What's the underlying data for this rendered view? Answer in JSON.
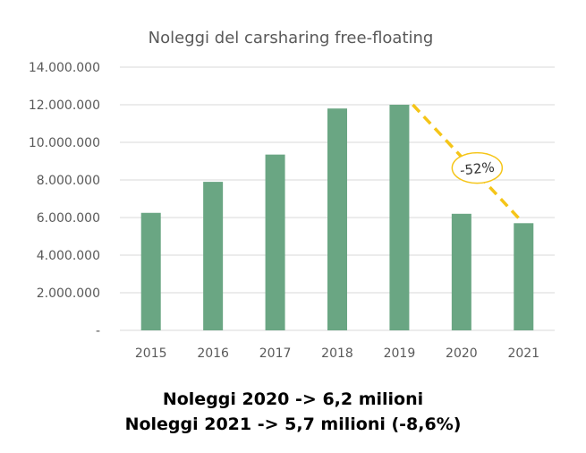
{
  "chart_data": {
    "type": "bar",
    "title": "Noleggi del carsharing free-floating",
    "xlabel": "",
    "ylabel": "",
    "categories": [
      "2015",
      "2016",
      "2017",
      "2018",
      "2019",
      "2020",
      "2021"
    ],
    "values": [
      6250000,
      7900000,
      9350000,
      11800000,
      12000000,
      6200000,
      5700000
    ],
    "ylim": [
      0,
      14000000
    ],
    "yticks": [
      0,
      2000000,
      4000000,
      6000000,
      8000000,
      10000000,
      12000000,
      14000000
    ],
    "ytick_labels": [
      "-",
      "2.000.000",
      "4.000.000",
      "6.000.000",
      "8.000.000",
      "10.000.000",
      "12.000.000",
      "14.000.000"
    ],
    "grid": true,
    "legend": "none",
    "bar_color": "#6aa683",
    "annotation": {
      "text": "-52%",
      "from_category": "2019",
      "to_category": "2021",
      "line_color": "#f5c518",
      "line_style": "dashed"
    }
  },
  "footnotes": {
    "line1": "Noleggi 2020 -> 6,2 milioni",
    "line2": "Noleggi 2021 -> 5,7 milioni (-8,6%)"
  }
}
